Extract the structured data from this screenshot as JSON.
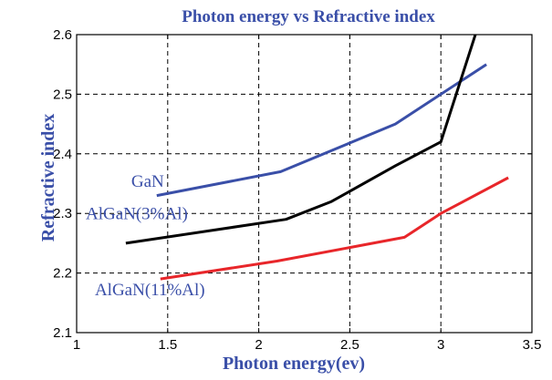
{
  "chart_data": {
    "type": "line",
    "title": "Photon energy vs Refractive index",
    "xlabel": "Photon energy(ev)",
    "ylabel": "Refractive index",
    "xlim": [
      1,
      3.5
    ],
    "ylim": [
      2.1,
      2.6
    ],
    "xticks": [
      "1",
      "1.5",
      "2",
      "2.5",
      "3",
      "3.5"
    ],
    "yticks": [
      "2.1",
      "2.2",
      "2.3",
      "2.4",
      "2.5",
      "2.6"
    ],
    "grid": true,
    "colors": {
      "title": "#3a4fa8",
      "axis_label": "#3a4fa8",
      "plot_bg": "#ffffff",
      "page_bg": "#ffffff"
    },
    "series": [
      {
        "color": "#3a4fa8",
        "x": [
          1.44,
          2.12,
          2.75,
          3.25
        ],
        "y": [
          2.33,
          2.37,
          2.45,
          2.55
        ]
      },
      {
        "color": "#000000",
        "x": [
          1.27,
          2.15,
          2.4,
          2.75,
          3.0,
          3.2
        ],
        "y": [
          2.25,
          2.29,
          2.32,
          2.38,
          2.42,
          2.61
        ]
      },
      {
        "color": "#e8262a",
        "x": [
          1.46,
          2.1,
          2.8,
          3.0,
          3.37
        ],
        "y": [
          2.19,
          2.22,
          2.26,
          2.3,
          2.36
        ]
      }
    ],
    "annotations": [
      {
        "text": "GaN",
        "x": 1.3,
        "y": 2.345,
        "color": "#3a4fa8"
      },
      {
        "text": "AlGaN(3%Al)",
        "x": 1.05,
        "y": 2.29,
        "color": "#3a4fa8"
      },
      {
        "text": "AlGaN(11%Al)",
        "x": 1.1,
        "y": 2.163,
        "color": "#3a4fa8"
      }
    ]
  }
}
